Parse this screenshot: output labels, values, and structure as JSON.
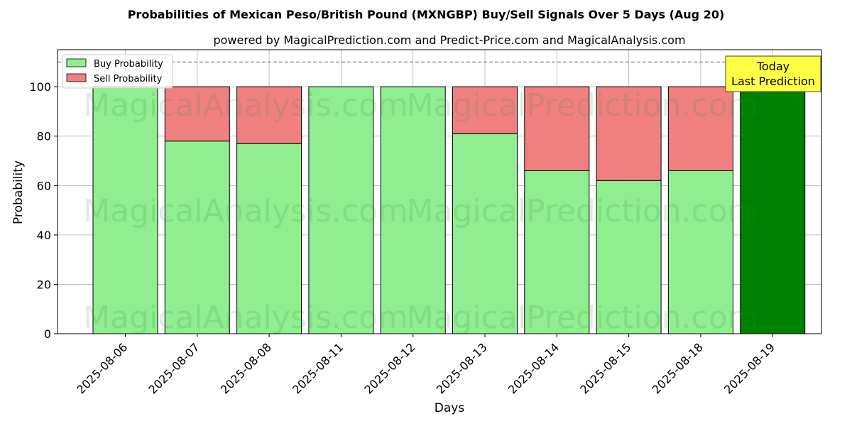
{
  "chart_data": {
    "type": "bar",
    "stacked": true,
    "title": "Probabilities of Mexican Peso/British Pound (MXNGBP) Buy/Sell Signals Over 5 Days (Aug 20)",
    "subtitle": "powered by MagicalPrediction.com and Predict-Price.com and MagicalAnalysis.com",
    "xlabel": "Days",
    "ylabel": "Probability",
    "ylim": [
      0,
      115
    ],
    "yticks": [
      0,
      20,
      40,
      60,
      80,
      100
    ],
    "ytick_labels": [
      "0",
      "20",
      "40",
      "60",
      "80",
      "100"
    ],
    "grid": true,
    "reference_line": 110,
    "categories": [
      "2025-08-06",
      "2025-08-07",
      "2025-08-08",
      "2025-08-11",
      "2025-08-12",
      "2025-08-13",
      "2025-08-14",
      "2025-08-15",
      "2025-08-18",
      "2025-08-19"
    ],
    "series": [
      {
        "name": "Buy Probability",
        "color": "#90ee90",
        "values": [
          100,
          78,
          77,
          100,
          100,
          81,
          66,
          62,
          66,
          100
        ]
      },
      {
        "name": "Sell Probability",
        "color": "#f08080",
        "values": [
          0,
          22,
          23,
          0,
          0,
          19,
          34,
          38,
          34,
          0
        ]
      }
    ],
    "highlight": {
      "index": 9,
      "color": "#008000"
    },
    "legend": {
      "position": "top-left",
      "entries": [
        "Buy Probability",
        "Sell Probability"
      ]
    },
    "annotation": {
      "lines": [
        "Today",
        "Last Prediction"
      ],
      "color": "#ffff44"
    },
    "watermarks": [
      "MagicalAnalysis.com",
      "MagicalPrediction.com"
    ]
  }
}
